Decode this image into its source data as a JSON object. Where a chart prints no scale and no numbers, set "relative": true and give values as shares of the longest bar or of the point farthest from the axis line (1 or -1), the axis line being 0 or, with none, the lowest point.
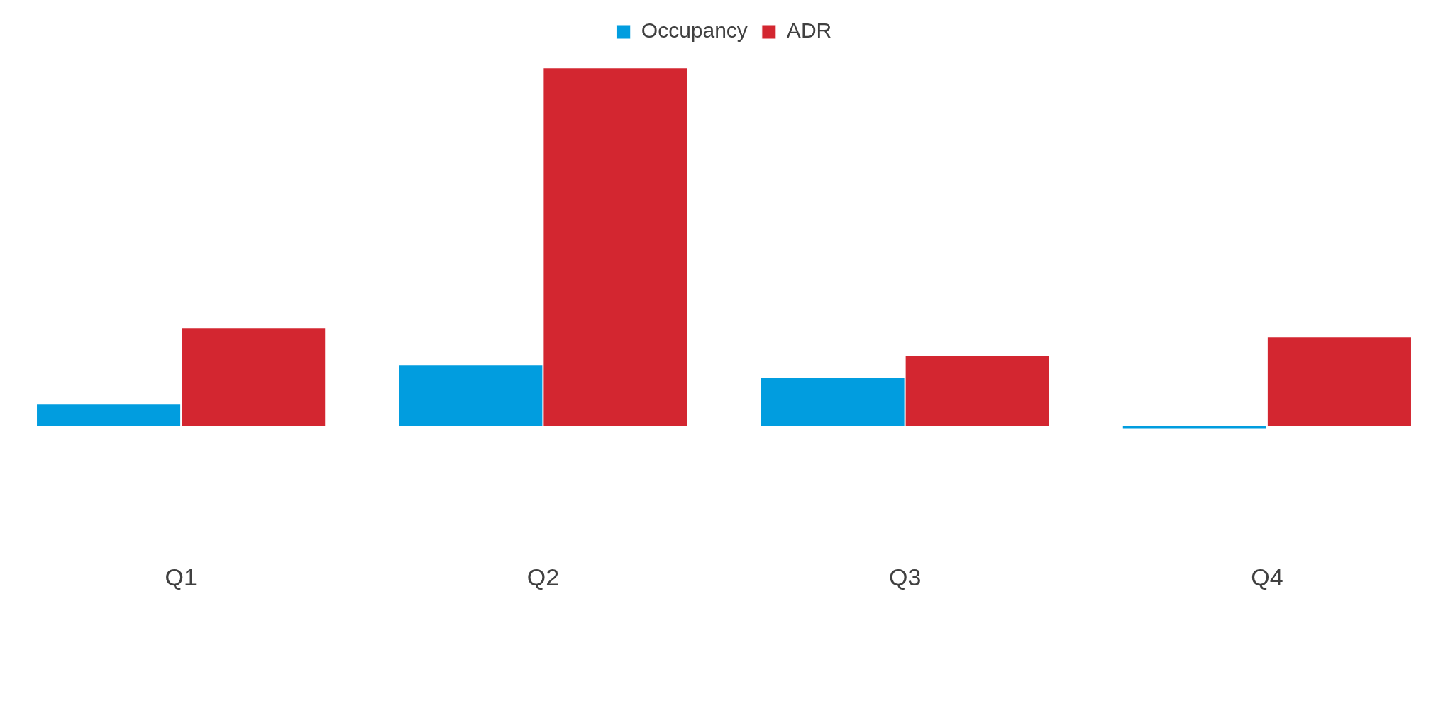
{
  "chart_data": {
    "type": "bar",
    "relative": true,
    "categories": [
      "Q1",
      "Q2",
      "Q3",
      "Q4"
    ],
    "legend": "top",
    "grid": false,
    "series": [
      {
        "name": "Occupancy",
        "color": "#019ddf",
        "values": [
          0.061,
          0.17,
          0.135,
          -0.009
        ]
      },
      {
        "name": "ADR",
        "color": "#d32630",
        "values": [
          0.275,
          1,
          0.197,
          0.249
        ]
      }
    ]
  }
}
